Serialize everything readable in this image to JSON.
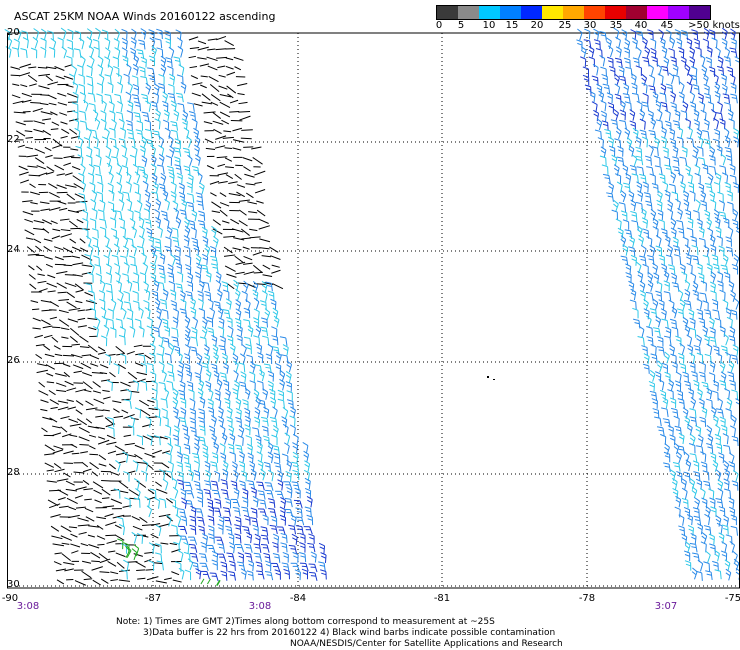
{
  "title": "ASCAT 25KM NOAA Winds 20160122 ascending",
  "legend": {
    "labels": [
      "0",
      "5",
      "10",
      "15",
      "20",
      "25",
      "30",
      "35",
      "40",
      "45",
      ">50 knots"
    ],
    "colors": [
      "#3a3a3a",
      "#8a8a8a",
      "#00c8ff",
      "#0080ff",
      "#0028ff",
      "#ffe800",
      "#ffa800",
      "#ff4400",
      "#e80000",
      "#a00030",
      "#ff00ff",
      "#a000ff",
      "#500090"
    ]
  },
  "lat_labels": [
    "20",
    "22",
    "24",
    "26",
    "28",
    "30"
  ],
  "lon_labels": [
    "-90",
    "-87",
    "-84",
    "-81",
    "-78",
    "-75"
  ],
  "time_labels": [
    "3:08",
    "3:08",
    "3:07"
  ],
  "notes": [
    "Note: 1) Times are GMT 2)Times along bottom correspond to measurement at ~25S",
    "3)Data buffer is 22 hrs from 20160122 4) Black wind barbs indicate possible contamination",
    "NOAA/NESDIS/Center for Satellite Applications and Research"
  ],
  "colors": {
    "black_barb": "#000000",
    "light_blue_barb": "#2ec8e8",
    "blue_barb": "#2a8ae8",
    "dark_blue_barb": "#1a3ad0",
    "green_barb": "#22aa22",
    "grid": "#000000",
    "time_text": "#6a1a9a"
  }
}
